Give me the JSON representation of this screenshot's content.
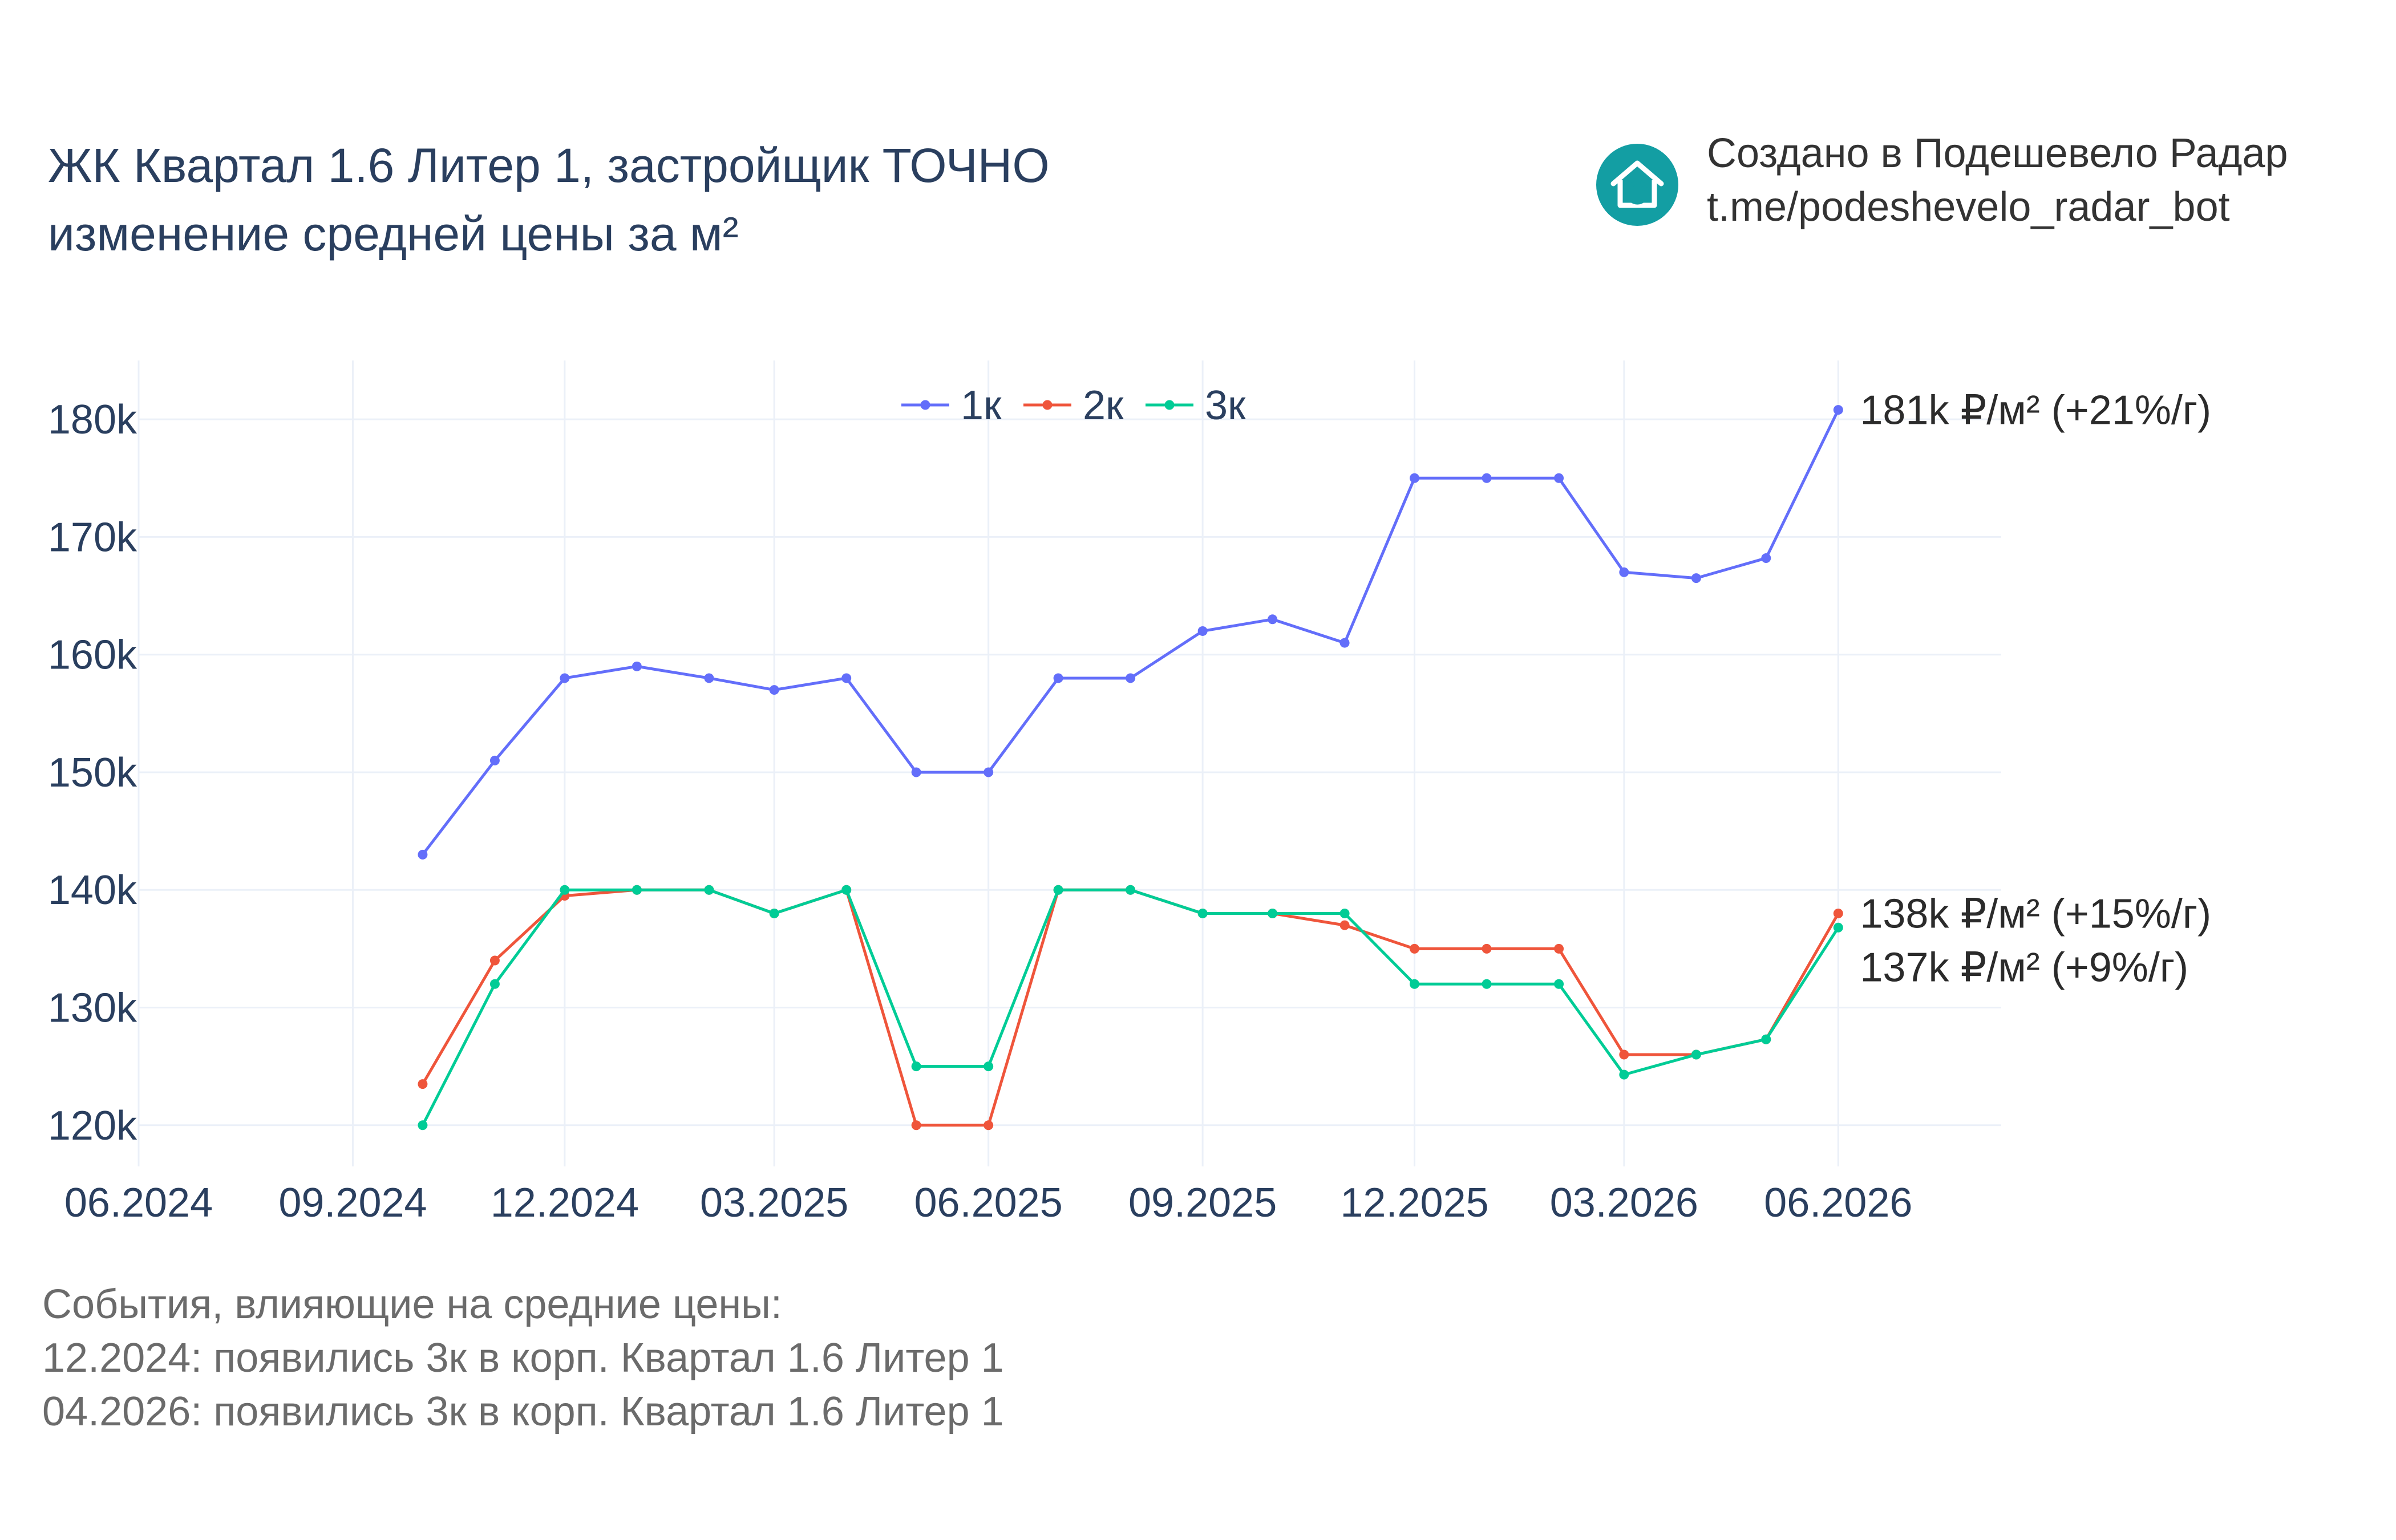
{
  "header": {
    "title_line1": "ЖК Квартал 1.6 Литер 1, застройщик ТОЧНО",
    "title_line2": "изменение средней цены за м²"
  },
  "credit": {
    "line1": "Создано в Подешевело Радар",
    "line2": "t.me/podeshevelo_radar_bot",
    "logo_icon": "house-refresh-icon",
    "logo_color": "#139ea3"
  },
  "events": {
    "heading": "События, влияющие на средние цены:",
    "items": [
      "12.2024: появились 3к в корп. Квартал 1.6 Литер 1",
      "04.2026: появились 3к в корп. Квартал 1.6 Литер 1"
    ]
  },
  "chart_data": {
    "type": "line",
    "title": "ЖК Квартал 1.6 Литер 1, застройщик ТОЧНО изменение средней цены за м²",
    "xlabel": "",
    "ylabel": "",
    "x": [
      "2024-10-01",
      "2024-11-01",
      "2024-12-01",
      "2025-01-01",
      "2025-02-01",
      "2025-03-01",
      "2025-04-01",
      "2025-05-01",
      "2025-06-01",
      "2025-07-01",
      "2025-08-01",
      "2025-09-01",
      "2025-10-01",
      "2025-11-01",
      "2025-12-01",
      "2026-01-01",
      "2026-02-01",
      "2026-03-01",
      "2026-04-01",
      "2026-05-01",
      "2026-06-01"
    ],
    "xlim": [
      "2024-06-01",
      "2026-08-10"
    ],
    "x_ticks": [
      "2024-06-01",
      "2024-09-01",
      "2024-12-01",
      "2025-03-01",
      "2025-06-01",
      "2025-09-01",
      "2025-12-01",
      "2026-03-01",
      "2026-06-01"
    ],
    "x_tick_labels": [
      "06.2024",
      "09.2024",
      "12.2024",
      "03.2025",
      "06.2025",
      "09.2025",
      "12.2025",
      "03.2026",
      "06.2026"
    ],
    "ylim": [
      116500,
      185000
    ],
    "y_ticks": [
      120000,
      130000,
      140000,
      150000,
      160000,
      170000,
      180000
    ],
    "y_tick_labels": [
      "120k",
      "130k",
      "140k",
      "150k",
      "160k",
      "170k",
      "180k"
    ],
    "grid": true,
    "legend_position": "top-center",
    "series": [
      {
        "name": "1к",
        "color": "#636efa",
        "values": [
          143000,
          151000,
          158000,
          159000,
          158000,
          157000,
          158000,
          150000,
          150000,
          158000,
          158000,
          162000,
          163000,
          161000,
          175000,
          175000,
          175000,
          167000,
          166500,
          168200,
          180800
        ],
        "end_label": "181k ₽/м² (+21%/г)"
      },
      {
        "name": "2к",
        "color": "#ef553b",
        "values": [
          123500,
          134000,
          139500,
          140000,
          140000,
          138000,
          140000,
          120000,
          120000,
          140000,
          140000,
          138000,
          138000,
          137000,
          135000,
          135000,
          135000,
          126000,
          126000,
          127300,
          138000
        ],
        "end_label": "138k ₽/м² (+15%/г)"
      },
      {
        "name": "3к",
        "color": "#00cc96",
        "values": [
          120000,
          132000,
          140000,
          140000,
          140000,
          138000,
          140000,
          125000,
          125000,
          140000,
          140000,
          138000,
          138000,
          138000,
          132000,
          132000,
          132000,
          124300,
          126000,
          127300,
          136800
        ],
        "end_label": "137k ₽/м² (+9%/г)"
      }
    ]
  }
}
